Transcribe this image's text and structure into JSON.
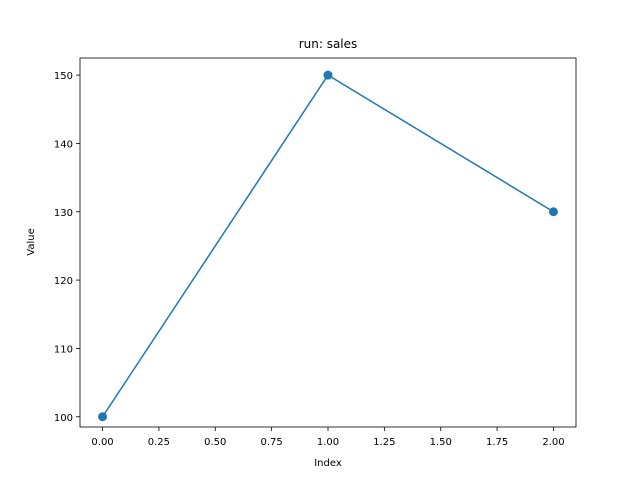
{
  "chart_data": {
    "type": "line",
    "title": "run: sales",
    "xlabel": "Index",
    "ylabel": "Value",
    "xlim": [
      -0.1,
      2.1
    ],
    "ylim": [
      98.5,
      152.5
    ],
    "x_ticks": [
      0.0,
      0.25,
      0.5,
      0.75,
      1.0,
      1.25,
      1.5,
      1.75,
      2.0
    ],
    "x_tick_labels": [
      "0.00",
      "0.25",
      "0.50",
      "0.75",
      "1.00",
      "1.25",
      "1.50",
      "1.75",
      "2.00"
    ],
    "y_ticks": [
      100,
      110,
      120,
      130,
      140,
      150
    ],
    "y_tick_labels": [
      "100",
      "110",
      "120",
      "130",
      "140",
      "150"
    ],
    "grid": false,
    "legend": "none",
    "series": [
      {
        "color": "#1f77b4",
        "marker": "circle",
        "x": [
          0,
          1,
          2
        ],
        "y": [
          100,
          150,
          130
        ]
      }
    ]
  }
}
